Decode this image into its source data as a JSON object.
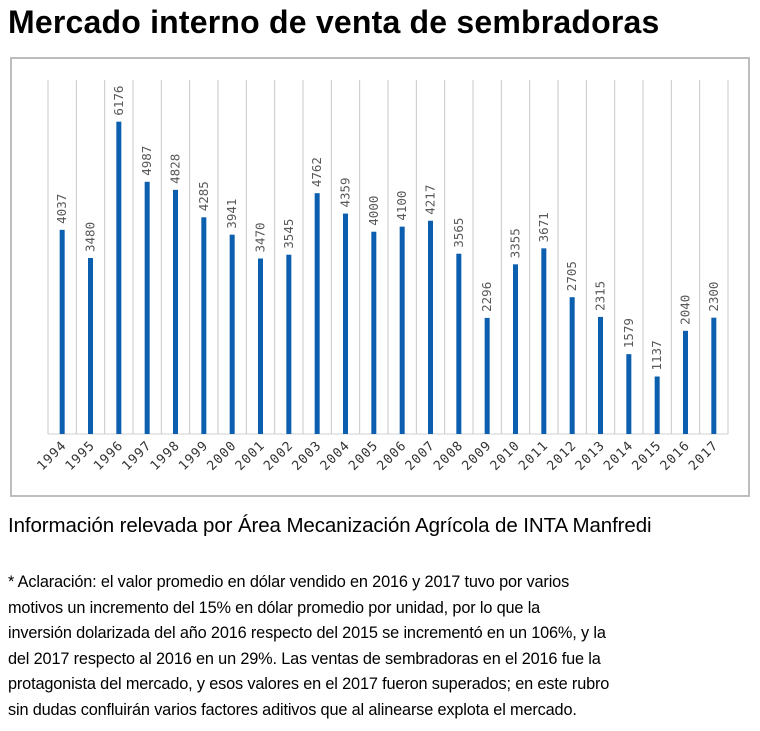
{
  "title": "Mercado interno de venta de sembradoras",
  "source": "Información relevada por Área Mecanización Agrícola de INTA Manfredi",
  "note_lines": [
    "* Aclaración: el valor promedio en dólar vendido en 2016 y 2017 tuvo por varios",
    "motivos un incremento del 15% en dólar promedio por unidad, por lo que la",
    "inversión dolarizada del año 2016 respecto del 2015 se incrementó en un 106%, y la",
    "del 2017 respecto al 2016 en un 29%. Las ventas de sembradoras en el 2016 fue la",
    "protagonista del mercado, y esos valores en el 2017 fueron superados; en este rubro",
    "sin dudas confluirán varios factores aditivos que al alinearse explota el mercado."
  ],
  "chart_data": {
    "type": "bar",
    "categories": [
      "1994",
      "1995",
      "1996",
      "1997",
      "1998",
      "1999",
      "2000",
      "2001",
      "2002",
      "2003",
      "2004",
      "2005",
      "2006",
      "2007",
      "2008",
      "2009",
      "2010",
      "2011",
      "2012",
      "2013",
      "2014",
      "2015",
      "2016",
      "2017"
    ],
    "values": [
      4037,
      3480,
      6176,
      4987,
      4828,
      4285,
      3941,
      3470,
      3545,
      4762,
      4359,
      4000,
      4100,
      4217,
      3565,
      2296,
      3355,
      3671,
      2705,
      2315,
      1579,
      1137,
      2040,
      2300
    ],
    "ylim": [
      0,
      7000
    ],
    "grid": "vertical category separators",
    "data_labels": true,
    "bar_color": "#0b5fae",
    "label_color": "#595959",
    "grid_color": "#c8c8c8"
  }
}
